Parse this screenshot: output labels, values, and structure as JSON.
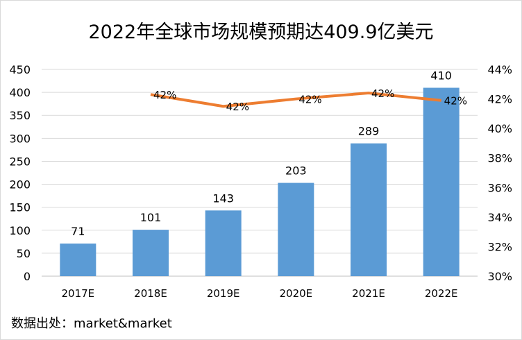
{
  "title": "2022年全球市场规模预期达409.9亿美元",
  "source": "数据出处：market&market",
  "chart_data": {
    "type": "bar",
    "categories": [
      "2017E",
      "2018E",
      "2019E",
      "2020E",
      "2021E",
      "2022E"
    ],
    "series": [
      {
        "values": [
          71,
          101,
          143,
          203,
          289,
          410
        ],
        "labels": [
          "71",
          "101",
          "143",
          "203",
          "289",
          "410"
        ],
        "type": "bar",
        "axis": "left",
        "color": "#5b9bd5"
      },
      {
        "values": [
          null,
          42.3,
          41.5,
          42.0,
          42.4,
          41.9
        ],
        "labels": [
          "",
          "42%",
          "42%",
          "42%",
          "42%",
          "42%"
        ],
        "type": "line",
        "axis": "right",
        "color": "#ed7d31"
      }
    ],
    "ylim": [
      0,
      450
    ],
    "yticks": [
      "0",
      "50",
      "100",
      "150",
      "200",
      "250",
      "300",
      "350",
      "400",
      "450"
    ],
    "y2lim": [
      30,
      44
    ],
    "y2ticks": [
      "30%",
      "32%",
      "34%",
      "36%",
      "38%",
      "40%",
      "42%",
      "44%"
    ],
    "grid": true,
    "legend": "none"
  }
}
